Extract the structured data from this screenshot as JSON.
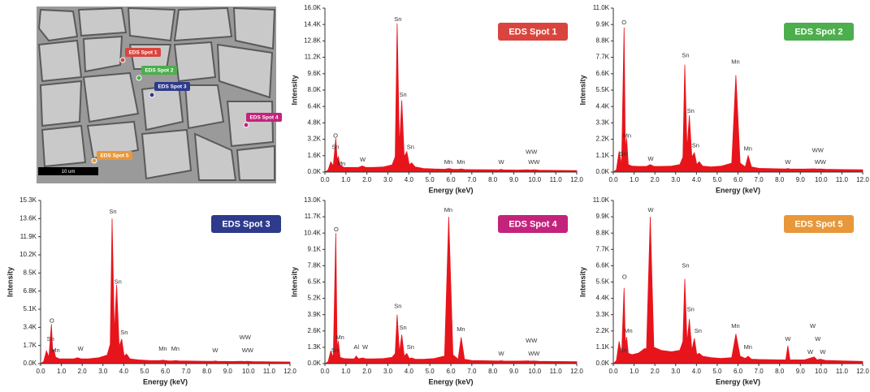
{
  "image": {
    "labels": [
      "EDS Spot 1",
      "EDS Spot 2",
      "EDS Spot 3",
      "EDS Spot 4",
      "EDS Spot 5"
    ],
    "scale_bar": "10 um"
  },
  "chart_data": [
    {
      "type": "area",
      "xlabel": "Energy (keV)",
      "ylabel": "Intensity",
      "xlim": [
        0,
        12
      ],
      "ylim": [
        0,
        16000
      ],
      "xticks": [
        {
          "value": 0,
          "label": "0.0"
        },
        {
          "value": 1,
          "label": "1.0"
        },
        {
          "value": 2,
          "label": "2.0"
        },
        {
          "value": 3,
          "label": "3.0"
        },
        {
          "value": 4,
          "label": "4.0"
        },
        {
          "value": 5,
          "label": "5.0"
        },
        {
          "value": 6,
          "label": "6.0"
        },
        {
          "value": 7,
          "label": "7.0"
        },
        {
          "value": 8,
          "label": "8.0"
        },
        {
          "value": 9,
          "label": "9.0"
        },
        {
          "value": 10,
          "label": "10.0"
        },
        {
          "value": 11,
          "label": "11.0"
        },
        {
          "value": 12,
          "label": "12.0"
        }
      ],
      "yticks": [
        {
          "value": 0,
          "label": "0.0K"
        },
        {
          "value": 1600,
          "label": "1.6K"
        },
        {
          "value": 3200,
          "label": "3.2K"
        },
        {
          "value": 4800,
          "label": "4.8K"
        },
        {
          "value": 6400,
          "label": "6.4K"
        },
        {
          "value": 8000,
          "label": "8.0K"
        },
        {
          "value": 9600,
          "label": "9.6K"
        },
        {
          "value": 11200,
          "label": "11.2K"
        },
        {
          "value": 12800,
          "label": "12.8K"
        },
        {
          "value": 14400,
          "label": "14.4K"
        },
        {
          "value": 16000,
          "label": "16.0K"
        }
      ],
      "legend_color": "#d9453e",
      "annotations": [
        "O",
        "Sn",
        "Mn",
        "W",
        "Sn",
        "Sn",
        "Sn",
        "Mn",
        "Mn",
        "W",
        "WW",
        "WW"
      ],
      "x": [
        0,
        0.15,
        0.28,
        0.4,
        0.52,
        0.58,
        0.64,
        0.72,
        0.9,
        1.2,
        1.4,
        1.49,
        1.6,
        1.78,
        1.95,
        2.3,
        2.8,
        3.2,
        3.35,
        3.44,
        3.55,
        3.66,
        3.78,
        3.9,
        4.02,
        4.13,
        4.3,
        4.7,
        5.2,
        5.7,
        5.9,
        6.1,
        6.35,
        6.49,
        6.65,
        7.0,
        8.0,
        8.3,
        8.4,
        8.5,
        9.2,
        9.67,
        9.8,
        9.96,
        10.2,
        11.0,
        12.0
      ],
      "series": [
        {
          "name": "EDS Spot 1",
          "color": "#e8141c",
          "values": [
            0,
            200,
            1000,
            600,
            3300,
            1200,
            1500,
            700,
            450,
            450,
            450,
            450,
            450,
            600,
            450,
            450,
            500,
            700,
            1500,
            14500,
            2500,
            7000,
            1500,
            2000,
            700,
            900,
            500,
            350,
            300,
            280,
            350,
            270,
            260,
            300,
            250,
            240,
            220,
            210,
            260,
            210,
            200,
            230,
            200,
            220,
            190,
            170,
            150
          ]
        }
      ]
    },
    {
      "type": "area",
      "xlabel": "Energy (keV)",
      "ylabel": "Intensity",
      "xlim": [
        0,
        12
      ],
      "ylim": [
        0,
        11000
      ],
      "xticks": [
        {
          "value": 0,
          "label": "0.0"
        },
        {
          "value": 1,
          "label": "1.0"
        },
        {
          "value": 2,
          "label": "2.0"
        },
        {
          "value": 3,
          "label": "3.0"
        },
        {
          "value": 4,
          "label": "4.0"
        },
        {
          "value": 5,
          "label": "5.0"
        },
        {
          "value": 6,
          "label": "6.0"
        },
        {
          "value": 7,
          "label": "7.0"
        },
        {
          "value": 8,
          "label": "8.0"
        },
        {
          "value": 9,
          "label": "9.0"
        },
        {
          "value": 10,
          "label": "10.0"
        },
        {
          "value": 11,
          "label": "11.0"
        },
        {
          "value": 12,
          "label": "12.0"
        }
      ],
      "yticks": [
        {
          "value": 0,
          "label": "0.0K"
        },
        {
          "value": 1100,
          "label": "1.1K"
        },
        {
          "value": 2200,
          "label": "2.2K"
        },
        {
          "value": 3300,
          "label": "3.3K"
        },
        {
          "value": 4400,
          "label": "4.4K"
        },
        {
          "value": 5500,
          "label": "5.5K"
        },
        {
          "value": 6600,
          "label": "6.6K"
        },
        {
          "value": 7700,
          "label": "7.7K"
        },
        {
          "value": 8800,
          "label": "8.8K"
        },
        {
          "value": 9900,
          "label": "9.9K"
        },
        {
          "value": 11000,
          "label": "11.0K"
        }
      ],
      "legend_color": "#4cae4c",
      "annotations": [
        "O",
        "Mn",
        "Sn",
        "W",
        "Sn",
        "Sn",
        "Sn",
        "Mn",
        "Mn",
        "W",
        "WW",
        "WW"
      ],
      "x": [
        0,
        0.15,
        0.28,
        0.4,
        0.52,
        0.58,
        0.64,
        0.72,
        0.9,
        1.2,
        1.4,
        1.49,
        1.6,
        1.78,
        1.95,
        2.3,
        2.8,
        3.2,
        3.35,
        3.44,
        3.55,
        3.66,
        3.78,
        3.9,
        4.02,
        4.13,
        4.3,
        4.7,
        5.2,
        5.7,
        5.9,
        6.1,
        6.35,
        6.49,
        6.65,
        7.0,
        8.0,
        8.3,
        8.4,
        8.5,
        9.2,
        9.67,
        9.8,
        9.96,
        10.2,
        11.0,
        12.0
      ],
      "series": [
        {
          "name": "EDS Spot 2",
          "color": "#e8141c",
          "values": [
            0,
            150,
            1400,
            500,
            9700,
            1500,
            2300,
            500,
            400,
            380,
            380,
            380,
            380,
            500,
            380,
            380,
            400,
            500,
            1000,
            7200,
            1500,
            3800,
            1000,
            1300,
            500,
            700,
            400,
            350,
            400,
            600,
            6500,
            600,
            350,
            1100,
            350,
            250,
            220,
            210,
            240,
            210,
            200,
            220,
            200,
            210,
            190,
            170,
            150
          ]
        }
      ]
    },
    {
      "type": "area",
      "xlabel": "Energy (keV)",
      "ylabel": "Intensity",
      "xlim": [
        0,
        12
      ],
      "ylim": [
        0,
        15300
      ],
      "xticks": [
        {
          "value": 0,
          "label": "0.0"
        },
        {
          "value": 1,
          "label": "1.0"
        },
        {
          "value": 2,
          "label": "2.0"
        },
        {
          "value": 3,
          "label": "3.0"
        },
        {
          "value": 4,
          "label": "4.0"
        },
        {
          "value": 5,
          "label": "5.0"
        },
        {
          "value": 6,
          "label": "6.0"
        },
        {
          "value": 7,
          "label": "7.0"
        },
        {
          "value": 8,
          "label": "8.0"
        },
        {
          "value": 9,
          "label": "9.0"
        },
        {
          "value": 10,
          "label": "10.0"
        },
        {
          "value": 11,
          "label": "11.0"
        },
        {
          "value": 12,
          "label": "12.0"
        }
      ],
      "yticks": [
        {
          "value": 0,
          "label": "0.0K"
        },
        {
          "value": 1700,
          "label": "1.7K"
        },
        {
          "value": 3400,
          "label": "3.4K"
        },
        {
          "value": 5100,
          "label": "5.1K"
        },
        {
          "value": 6800,
          "label": "6.8K"
        },
        {
          "value": 8500,
          "label": "8.5K"
        },
        {
          "value": 10200,
          "label": "10.2K"
        },
        {
          "value": 11900,
          "label": "11.9K"
        },
        {
          "value": 13600,
          "label": "13.6K"
        },
        {
          "value": 15300,
          "label": "15.3K"
        }
      ],
      "legend_color": "#2e3a8c",
      "annotations": [
        "O",
        "Sn",
        "Mn",
        "W",
        "Sn",
        "Sn",
        "Sn",
        "Mn",
        "Mn",
        "W",
        "WW",
        "WW"
      ],
      "x": [
        0,
        0.15,
        0.28,
        0.4,
        0.52,
        0.58,
        0.64,
        0.72,
        0.9,
        1.2,
        1.4,
        1.49,
        1.6,
        1.78,
        1.95,
        2.3,
        2.8,
        3.2,
        3.35,
        3.44,
        3.55,
        3.66,
        3.78,
        3.9,
        4.02,
        4.13,
        4.3,
        4.7,
        5.2,
        5.7,
        5.9,
        6.1,
        6.35,
        6.49,
        6.65,
        7.0,
        8.0,
        8.3,
        8.4,
        8.5,
        9.2,
        9.67,
        9.8,
        9.96,
        10.2,
        11.0,
        12.0
      ],
      "series": [
        {
          "name": "EDS Spot 3",
          "color": "#e8141c",
          "values": [
            0,
            200,
            1200,
            600,
            3700,
            1200,
            1300,
            600,
            450,
            450,
            450,
            450,
            450,
            550,
            450,
            450,
            550,
            800,
            1800,
            13600,
            2800,
            7400,
            1600,
            2300,
            700,
            900,
            450,
            350,
            300,
            280,
            320,
            270,
            260,
            280,
            250,
            240,
            220,
            210,
            240,
            210,
            200,
            220,
            200,
            210,
            190,
            170,
            150
          ]
        }
      ]
    },
    {
      "type": "area",
      "xlabel": "Energy (keV)",
      "ylabel": "Intensity",
      "xlim": [
        0,
        12
      ],
      "ylim": [
        0,
        13000
      ],
      "xticks": [
        {
          "value": 0,
          "label": "0.0"
        },
        {
          "value": 1,
          "label": "1.0"
        },
        {
          "value": 2,
          "label": "2.0"
        },
        {
          "value": 3,
          "label": "3.0"
        },
        {
          "value": 4,
          "label": "4.0"
        },
        {
          "value": 5,
          "label": "5.0"
        },
        {
          "value": 6,
          "label": "6.0"
        },
        {
          "value": 7,
          "label": "7.0"
        },
        {
          "value": 8,
          "label": "8.0"
        },
        {
          "value": 9,
          "label": "9.0"
        },
        {
          "value": 10,
          "label": "10.0"
        },
        {
          "value": 11,
          "label": "11.0"
        },
        {
          "value": 12,
          "label": "12.0"
        }
      ],
      "yticks": [
        {
          "value": 0,
          "label": "0.0K"
        },
        {
          "value": 1300,
          "label": "1.3K"
        },
        {
          "value": 2600,
          "label": "2.6K"
        },
        {
          "value": 3900,
          "label": "3.9K"
        },
        {
          "value": 5200,
          "label": "5.2K"
        },
        {
          "value": 6500,
          "label": "6.5K"
        },
        {
          "value": 7800,
          "label": "7.8K"
        },
        {
          "value": 9100,
          "label": "9.1K"
        },
        {
          "value": 10400,
          "label": "10.4K"
        },
        {
          "value": 11700,
          "label": "11.7K"
        },
        {
          "value": 13000,
          "label": "13.0K"
        }
      ],
      "legend_color": "#c4237c",
      "annotations": [
        "O",
        "Mn",
        "Sn",
        "Al",
        "W",
        "Sn",
        "Sn",
        "Sn",
        "Mn",
        "Mn",
        "W",
        "WW",
        "WW"
      ],
      "x": [
        0,
        0.15,
        0.28,
        0.4,
        0.52,
        0.58,
        0.64,
        0.72,
        0.9,
        1.2,
        1.4,
        1.49,
        1.6,
        1.78,
        1.95,
        2.3,
        2.8,
        3.2,
        3.35,
        3.44,
        3.55,
        3.66,
        3.78,
        3.9,
        4.02,
        4.13,
        4.3,
        4.7,
        5.2,
        5.7,
        5.9,
        6.1,
        6.35,
        6.49,
        6.65,
        7.0,
        8.0,
        8.3,
        8.4,
        8.5,
        9.2,
        9.67,
        9.8,
        9.96,
        10.2,
        11.0,
        12.0
      ],
      "series": [
        {
          "name": "EDS Spot 4",
          "color": "#e8141c",
          "values": [
            0,
            150,
            1000,
            500,
            10400,
            1200,
            1800,
            500,
            400,
            380,
            380,
            600,
            380,
            450,
            380,
            380,
            400,
            500,
            800,
            3900,
            900,
            2300,
            600,
            800,
            400,
            450,
            350,
            350,
            400,
            600,
            11700,
            700,
            350,
            2100,
            350,
            250,
            220,
            210,
            230,
            210,
            200,
            220,
            200,
            210,
            190,
            170,
            150
          ]
        }
      ]
    },
    {
      "type": "area",
      "xlabel": "Energy (keV)",
      "ylabel": "Intensity",
      "xlim": [
        0,
        12
      ],
      "ylim": [
        0,
        11000
      ],
      "xticks": [
        {
          "value": 0,
          "label": "0.0"
        },
        {
          "value": 1,
          "label": "1.0"
        },
        {
          "value": 2,
          "label": "2.0"
        },
        {
          "value": 3,
          "label": "3.0"
        },
        {
          "value": 4,
          "label": "4.0"
        },
        {
          "value": 5,
          "label": "5.0"
        },
        {
          "value": 6,
          "label": "6.0"
        },
        {
          "value": 7,
          "label": "7.0"
        },
        {
          "value": 8,
          "label": "8.0"
        },
        {
          "value": 9,
          "label": "9.0"
        },
        {
          "value": 10,
          "label": "10.0"
        },
        {
          "value": 11,
          "label": "11.0"
        },
        {
          "value": 12,
          "label": "12.0"
        }
      ],
      "yticks": [
        {
          "value": 0,
          "label": "0.0K"
        },
        {
          "value": 1100,
          "label": "1.1K"
        },
        {
          "value": 2200,
          "label": "2.2K"
        },
        {
          "value": 3300,
          "label": "3.3K"
        },
        {
          "value": 4400,
          "label": "4.4K"
        },
        {
          "value": 5500,
          "label": "5.5K"
        },
        {
          "value": 6600,
          "label": "6.6K"
        },
        {
          "value": 7700,
          "label": "7.7K"
        },
        {
          "value": 8800,
          "label": "8.8K"
        },
        {
          "value": 9900,
          "label": "9.9K"
        },
        {
          "value": 11000,
          "label": "11.0K"
        }
      ],
      "legend_color": "#e8973a",
      "annotations": [
        "O",
        "Mn",
        "Sn",
        "W",
        "Sn",
        "Sn",
        "Sn",
        "Mn",
        "Mn",
        "W",
        "W",
        "W",
        "W",
        "W"
      ],
      "x": [
        0,
        0.15,
        0.28,
        0.4,
        0.52,
        0.58,
        0.64,
        0.72,
        0.9,
        1.2,
        1.4,
        1.49,
        1.6,
        1.78,
        1.95,
        2.3,
        2.8,
        3.2,
        3.35,
        3.44,
        3.55,
        3.66,
        3.78,
        3.9,
        4.02,
        4.13,
        4.3,
        4.7,
        5.2,
        5.7,
        5.9,
        6.1,
        6.35,
        6.49,
        6.65,
        7.0,
        8.0,
        8.3,
        8.4,
        8.5,
        9.2,
        9.67,
        9.8,
        9.96,
        10.2,
        11.0,
        12.0
      ],
      "series": [
        {
          "name": "EDS Spot 5",
          "color": "#e8141c",
          "values": [
            0,
            200,
            1500,
            600,
            5100,
            1300,
            1800,
            700,
            600,
            700,
            900,
            1000,
            1000,
            9900,
            1100,
            900,
            800,
            900,
            1500,
            5700,
            1400,
            3000,
            900,
            1700,
            600,
            700,
            500,
            400,
            350,
            400,
            2000,
            500,
            350,
            500,
            300,
            280,
            250,
            250,
            1200,
            250,
            250,
            450,
            250,
            300,
            220,
            180,
            150
          ]
        }
      ]
    }
  ]
}
